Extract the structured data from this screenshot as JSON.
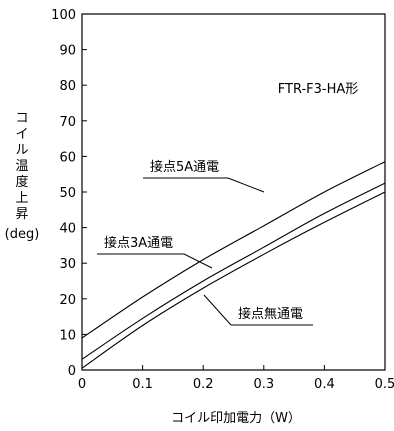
{
  "chart_data": {
    "type": "line",
    "title": "",
    "annotation": "FTR-F3-HA形",
    "xlabel": "コイル印加電力（W）",
    "ylabel_chars": [
      "コ",
      "イ",
      "ル",
      "温",
      "度",
      "上",
      "昇"
    ],
    "ylabel_unit": "(deg)",
    "xlim": [
      0,
      0.5
    ],
    "ylim": [
      0,
      100
    ],
    "x_ticks": [
      0,
      0.1,
      0.2,
      0.3,
      0.4,
      0.5
    ],
    "x_tick_labels": [
      "0",
      "0.1",
      "0.2",
      "0.3",
      "0.4",
      "0.5"
    ],
    "y_ticks": [
      0,
      10,
      20,
      30,
      40,
      50,
      60,
      70,
      80,
      90,
      100
    ],
    "y_tick_labels": [
      "0",
      "10",
      "20",
      "30",
      "40",
      "50",
      "60",
      "70",
      "80",
      "90",
      "100"
    ],
    "grid": false,
    "series": [
      {
        "name": "接点5A通電",
        "x": [
          0,
          0.1,
          0.2,
          0.3,
          0.4,
          0.5
        ],
        "y": [
          9,
          20.5,
          31,
          40.5,
          50,
          58.5
        ]
      },
      {
        "name": "接点3A通電",
        "x": [
          0,
          0.1,
          0.2,
          0.3,
          0.4,
          0.5
        ],
        "y": [
          3,
          14.5,
          25,
          34.5,
          44,
          52.5
        ]
      },
      {
        "name": "接点無通電",
        "x": [
          0,
          0.1,
          0.2,
          0.3,
          0.4,
          0.5
        ],
        "y": [
          0.5,
          12.5,
          23,
          32.5,
          41.5,
          50
        ]
      }
    ]
  }
}
